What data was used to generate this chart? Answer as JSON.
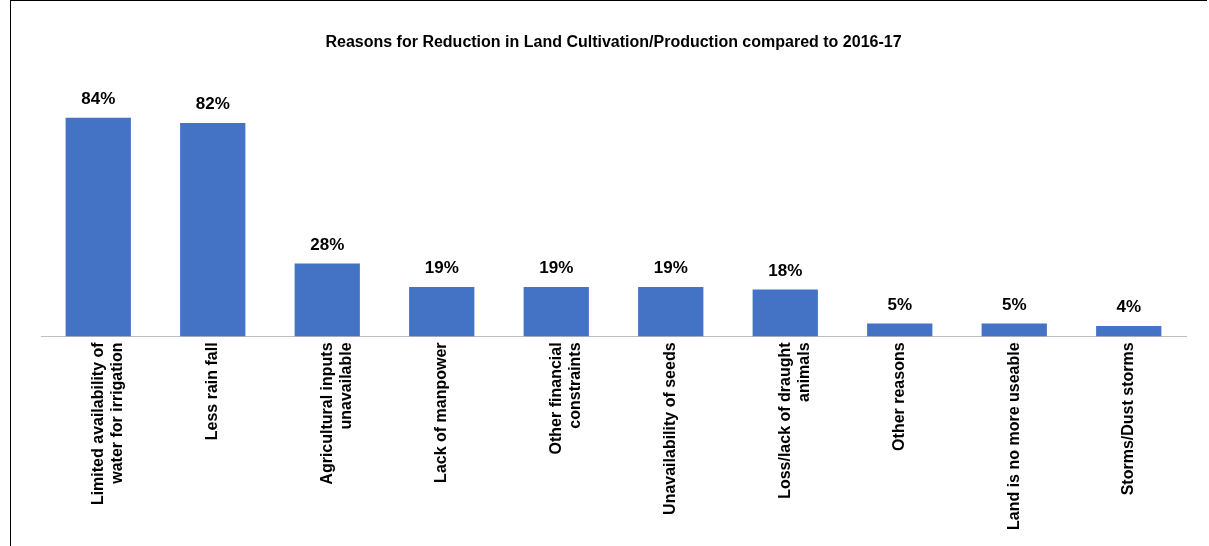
{
  "chart_data": {
    "type": "bar",
    "title": "Reasons for Reduction in Land Cultivation/Production compared to 2016-17",
    "categories": [
      "Limited availability of water for irrigation",
      "Less rain fall",
      "Agricultural inputs unavailable",
      "Lack of manpower",
      "Other financial constraints",
      "Unavailability of seeds",
      "Loss/lack of draught animals",
      "Other reasons",
      "Land is no more useable",
      "Storms/Dust storms"
    ],
    "values": [
      84,
      82,
      28,
      19,
      19,
      19,
      18,
      5,
      5,
      4
    ],
    "value_labels": [
      "84%",
      "82%",
      "28%",
      "19%",
      "19%",
      "19%",
      "18%",
      "5%",
      "5%",
      "4%"
    ],
    "color": "#4472c4",
    "grid": false,
    "legend": false
  }
}
